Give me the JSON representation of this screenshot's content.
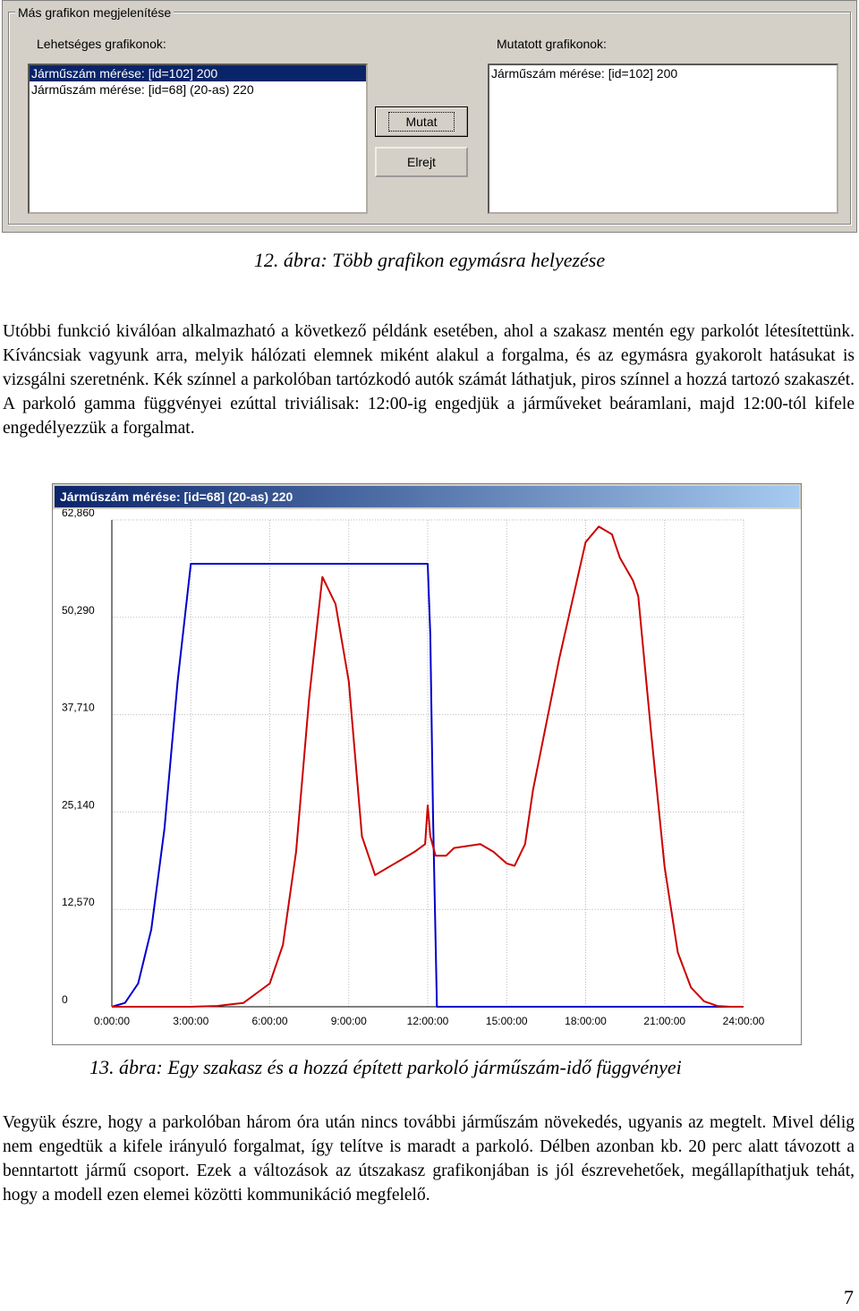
{
  "dialog": {
    "title": "Más grafikon megjelenítése",
    "available_label": "Lehetséges grafikonok:",
    "shown_label": "Mutatott grafikonok:",
    "available_items": [
      {
        "label": "Járműszám mérése: [id=102] 200",
        "selected": true
      },
      {
        "label": "Járműszám mérése: [id=68] (20-as) 220",
        "selected": false
      }
    ],
    "shown_items": [
      {
        "label": "Járműszám mérése: [id=102] 200"
      }
    ],
    "show_button": "Mutat",
    "hide_button": "Elrejt"
  },
  "caption12": "12. ábra: Több grafikon egymásra helyezése",
  "paragraph1": "Utóbbi funkció kiválóan alkalmazható a következő példánk esetében, ahol a szakasz mentén egy parkolót létesítettünk. Kíváncsiak vagyunk arra, melyik hálózati elemnek miként alakul a forgalma, és az egymásra gyakorolt hatásukat is vizsgálni szeretnénk. Kék színnel a parkolóban tartózkodó autók számát láthatjuk, piros színnel a hozzá tartozó szakaszét. A parkoló gamma függvényei ezúttal triviálisak: 12:00-ig engedjük a járműveket beáramlani, majd 12:00-tól kifele engedélyezzük a forgalmat.",
  "caption13": "13. ábra: Egy szakasz és a hozzá épített parkoló járműszám-idő függvényei",
  "paragraph2": "Vegyük észre, hogy a parkolóban három óra után nincs további járműszám növekedés, ugyanis az megtelt. Mivel délig nem engedtük a kifele irányuló forgalmat, így telítve is maradt a parkoló. Délben azonban kb. 20 perc alatt távozott a benntartott jármű csoport. Ezek a változások az útszakasz grafikonjában is jól észrevehetőek, megállapíthatjuk tehát, hogy a modell ezen elemei közötti kommunikáció megfelelő.",
  "page_number": "7",
  "chart_data": {
    "type": "line",
    "title": "Járműszám mérése: [id=68] (20-as) 220",
    "y_tick_labels": [
      "0",
      "12,570",
      "25,140",
      "37,710",
      "50,290",
      "62,860"
    ],
    "x_tick_labels": [
      "0:00:00",
      "3:00:00",
      "6:00:00",
      "9:00:00",
      "12:00:00",
      "15:00:00",
      "18:00:00",
      "21:00:00",
      "24:00:00"
    ],
    "xlim_hours": [
      0,
      24
    ],
    "ylim": [
      0,
      62860
    ],
    "grid": true,
    "colors": {
      "parking": "#0000cc",
      "segment": "#cc0000",
      "grid": "#bbbbbb",
      "axis": "#000000"
    },
    "series": [
      {
        "color": "#0000cc",
        "x_hours": [
          0,
          0.5,
          1.0,
          1.5,
          2.0,
          2.5,
          3.0,
          3.1,
          11.9,
          12.0,
          12.1,
          12.2,
          12.35,
          24.0
        ],
        "values": [
          0,
          500,
          3000,
          10000,
          23000,
          42000,
          57200,
          57200,
          57200,
          57200,
          48000,
          25000,
          0,
          0
        ]
      },
      {
        "color": "#cc0000",
        "x_hours": [
          0,
          1.0,
          2.0,
          3.0,
          4.0,
          5.0,
          6.0,
          6.5,
          7.0,
          7.5,
          8.0,
          8.5,
          9.0,
          9.5,
          10.0,
          10.5,
          11.0,
          11.5,
          11.9,
          12.0,
          12.1,
          12.3,
          12.7,
          13.0,
          14.0,
          14.5,
          15.0,
          15.3,
          15.7,
          16.0,
          17.0,
          18.0,
          18.5,
          19.0,
          19.3,
          19.8,
          20.0,
          20.5,
          21.0,
          21.5,
          22.0,
          22.5,
          23.0,
          23.5,
          24.0
        ],
        "values": [
          0,
          0,
          0,
          0,
          100,
          500,
          3000,
          8000,
          20000,
          40000,
          55500,
          52000,
          42000,
          22000,
          17000,
          18000,
          19000,
          20000,
          21000,
          26000,
          22000,
          19500,
          19500,
          20500,
          21000,
          20000,
          18500,
          18200,
          21000,
          28000,
          45000,
          60000,
          62000,
          61000,
          58000,
          55000,
          53000,
          35000,
          18000,
          7000,
          2500,
          700,
          100,
          0,
          0
        ]
      }
    ]
  }
}
